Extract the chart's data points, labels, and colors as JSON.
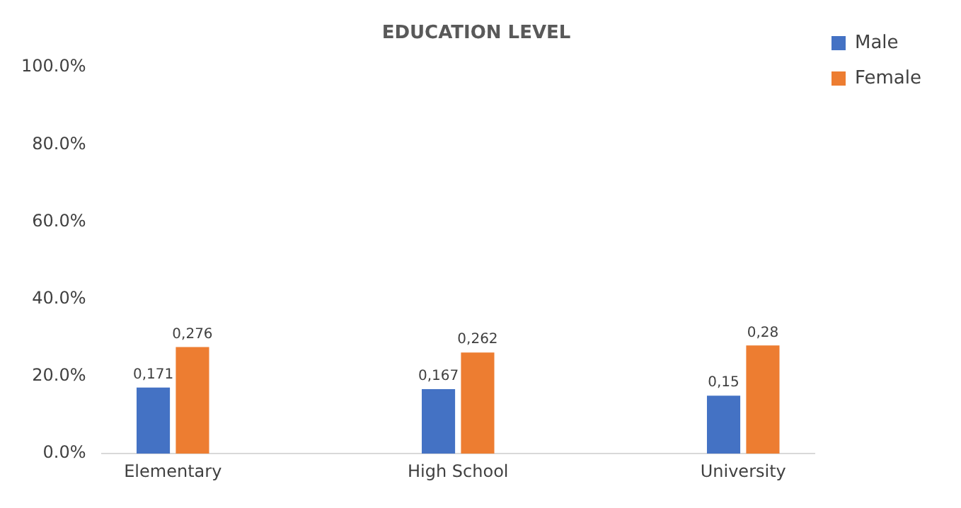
{
  "chart_data": {
    "type": "bar",
    "title": "EDUCATION LEVEL",
    "categories": [
      "Elementary",
      null,
      "High School",
      null,
      "University"
    ],
    "series": [
      {
        "name": "Male",
        "color": "#4472c4",
        "values": [
          0.171,
          0,
          0.167,
          0,
          0.15
        ],
        "value_labels": [
          "0,171",
          null,
          "0,167",
          null,
          "0,15"
        ]
      },
      {
        "name": "Female",
        "color": "#ed7d31",
        "values": [
          0.276,
          0,
          0.262,
          0,
          0.28
        ],
        "value_labels": [
          "0,276",
          null,
          "0,262",
          null,
          "0,28"
        ]
      }
    ],
    "ylim": [
      0,
      1
    ],
    "yticks": [
      {
        "value": 0,
        "label": "0.0%"
      },
      {
        "value": 0.2,
        "label": "20.0%"
      },
      {
        "value": 0.4,
        "label": "40.0%"
      },
      {
        "value": 0.6,
        "label": "60.0%"
      },
      {
        "value": 0.8,
        "label": "80.0%"
      },
      {
        "value": 1,
        "label": "100.0%"
      }
    ],
    "grid": false,
    "legend": "top right"
  }
}
